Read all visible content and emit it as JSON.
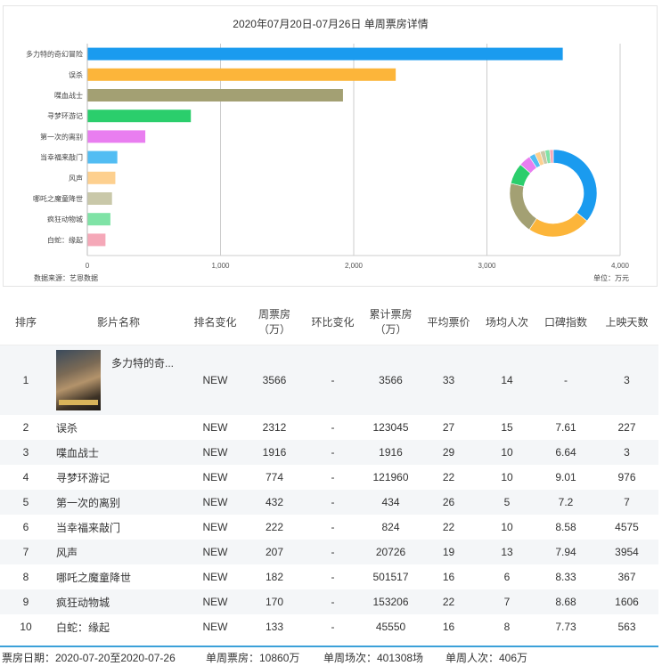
{
  "chart_data": {
    "type": "bar",
    "title": "2020年07月20日-07月26日 单周票房详情",
    "categories": [
      "多力特的奇幻冒险",
      "误杀",
      "喋血战士",
      "寻梦环游记",
      "第一次的离别",
      "当幸福来敲门",
      "风声",
      "哪吒之魔童降世",
      "疯狂动物城",
      "白蛇：缘起"
    ],
    "values": [
      3566,
      2312,
      1916,
      774,
      432,
      222,
      207,
      182,
      170,
      133
    ],
    "colors": [
      "#1a9bef",
      "#fcb53a",
      "#a3a073",
      "#2bce6c",
      "#e97ef0",
      "#52bdf3",
      "#fdd08f",
      "#c9c8a9",
      "#7fe3a6",
      "#f5a8b8"
    ],
    "xlim": [
      0,
      4000
    ],
    "xticks": [
      "0",
      "1,000",
      "2,000",
      "3,000",
      "4,000"
    ],
    "grid": true,
    "legend": "none",
    "donut": {
      "type": "pie",
      "values": [
        3566,
        2312,
        1916,
        774,
        432,
        222,
        207,
        182,
        170,
        133
      ]
    }
  },
  "source_label": "数据来源：艺恩数据",
  "unit_label": "单位：万元",
  "table": {
    "headers": [
      "排序",
      "影片名称",
      "排名变化",
      "周票房（万）",
      "环比变化",
      "累计票房（万）",
      "平均票价",
      "场均人次",
      "口碑指数",
      "上映天数"
    ],
    "rows": [
      [
        "1",
        "多力特的奇...",
        "NEW",
        "3566",
        "-",
        "3566",
        "33",
        "14",
        "-",
        "3"
      ],
      [
        "2",
        "误杀",
        "NEW",
        "2312",
        "-",
        "123045",
        "27",
        "15",
        "7.61",
        "227"
      ],
      [
        "3",
        "喋血战士",
        "NEW",
        "1916",
        "-",
        "1916",
        "29",
        "10",
        "6.64",
        "3"
      ],
      [
        "4",
        "寻梦环游记",
        "NEW",
        "774",
        "-",
        "121960",
        "22",
        "10",
        "9.01",
        "976"
      ],
      [
        "5",
        "第一次的离别",
        "NEW",
        "432",
        "-",
        "434",
        "26",
        "5",
        "7.2",
        "7"
      ],
      [
        "6",
        "当幸福来敲门",
        "NEW",
        "222",
        "-",
        "824",
        "22",
        "10",
        "8.58",
        "4575"
      ],
      [
        "7",
        "风声",
        "NEW",
        "207",
        "-",
        "20726",
        "19",
        "13",
        "7.94",
        "3954"
      ],
      [
        "8",
        "哪吒之魔童降世",
        "NEW",
        "182",
        "-",
        "501517",
        "16",
        "6",
        "8.33",
        "367"
      ],
      [
        "9",
        "疯狂动物城",
        "NEW",
        "170",
        "-",
        "153206",
        "22",
        "7",
        "8.68",
        "1606"
      ],
      [
        "10",
        "白蛇：缘起",
        "NEW",
        "133",
        "-",
        "45550",
        "16",
        "8",
        "7.73",
        "563"
      ]
    ]
  },
  "footer": {
    "date": "票房日期：2020-07-20至2020-07-26",
    "box": "单周票房：10860万",
    "shows": "单周场次：401308场",
    "people": "单周人次：406万"
  }
}
